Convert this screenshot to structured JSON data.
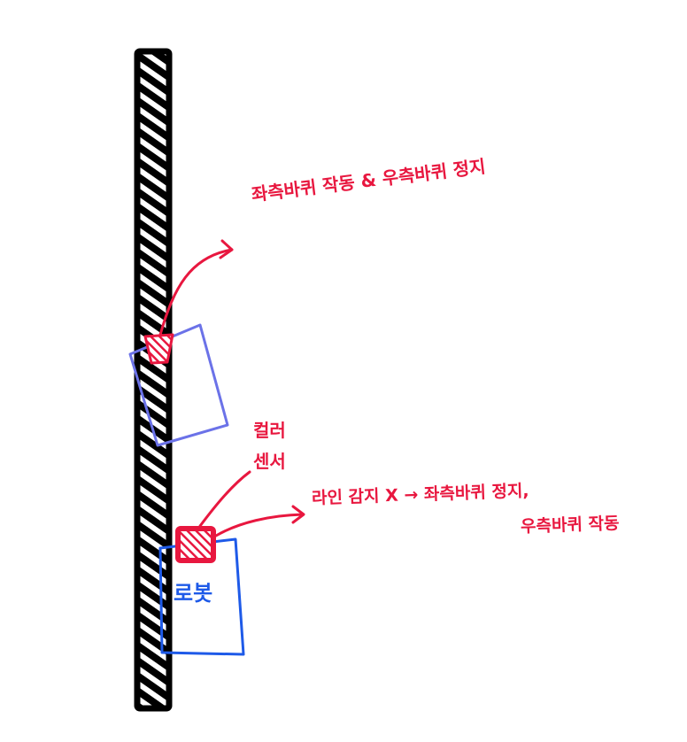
{
  "diagram": {
    "colors": {
      "line": "#000000",
      "annotation": "#e8173f",
      "robot_tilted": "#6b72e8",
      "robot": "#1e5ae8"
    },
    "labels": {
      "turn_right": "좌측바퀴 작동 & 우측바퀴 정지",
      "color_sensor_line1": "컬러",
      "color_sensor_line2": "센서",
      "turn_left_line1": "라인 감지 X → 좌측바퀴 정지,",
      "turn_left_line2": "우측바퀴 작동",
      "robot": "로봇"
    }
  }
}
